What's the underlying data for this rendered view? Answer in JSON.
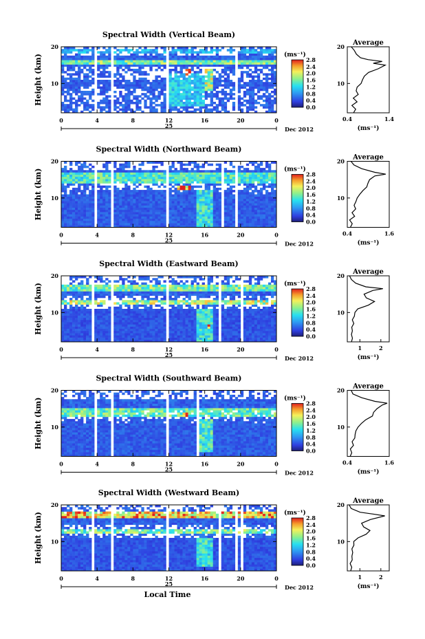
{
  "chart_data": [
    {
      "type": "heatmap",
      "title": "Spectral Width (Vertical Beam)",
      "ylabel": "Height (km)",
      "xticks": [
        "0",
        "4",
        "8",
        "12",
        "16",
        "20",
        "0"
      ],
      "yticks": [
        "10",
        "20"
      ],
      "date_day": "25",
      "date_label": "Dec 2012",
      "xlim": [
        0,
        24
      ],
      "ylim": [
        2,
        20
      ],
      "colorbar": {
        "unit_label": "(ms⁻¹)",
        "ticks": [
          "0.0",
          "0.4",
          "0.8",
          "1.2",
          "1.6",
          "2.0",
          "2.4",
          "2.8"
        ],
        "range": [
          0,
          2.8
        ]
      },
      "data_gaps": [
        [
          3.7,
          4.0
        ],
        [
          4.3,
          4.4
        ],
        [
          5.6,
          5.9
        ],
        [
          11.7,
          12.0
        ],
        [
          18.1,
          18.3
        ],
        [
          19.4,
          19.6
        ],
        [
          20.8,
          21.0
        ]
      ],
      "features": [
        {
          "x": [
            0,
            24
          ],
          "y": [
            8.5,
            11
          ],
          "value": 0.5
        },
        {
          "x": [
            0,
            24
          ],
          "y": [
            15.5,
            16.5
          ],
          "value": 1.6
        },
        {
          "x": [
            12,
            16
          ],
          "y": [
            4,
            13
          ],
          "value": 1.1
        },
        {
          "x": [
            13.8,
            14.6
          ],
          "y": [
            12.5,
            14
          ],
          "value": 2.6
        },
        {
          "x": [
            16,
            17
          ],
          "y": [
            8,
            14
          ],
          "value": 1.8
        },
        {
          "x": [
            0,
            24
          ],
          "y": [
            18,
            19.5
          ],
          "value": 1.0
        }
      ],
      "average": {
        "title": "Average",
        "xlabel": "(ms⁻¹)",
        "xticks": [
          "0.4",
          "1.4"
        ],
        "xlim": [
          0.4,
          1.4
        ],
        "yticks": [
          "10",
          "20"
        ],
        "profile": [
          [
            2,
            0.55
          ],
          [
            3,
            0.6
          ],
          [
            4,
            0.5
          ],
          [
            5,
            0.62
          ],
          [
            6,
            0.55
          ],
          [
            7,
            0.68
          ],
          [
            8,
            0.6
          ],
          [
            9,
            0.64
          ],
          [
            10,
            0.72
          ],
          [
            11,
            0.75
          ],
          [
            12,
            0.8
          ],
          [
            13,
            0.92
          ],
          [
            14,
            1.15
          ],
          [
            15,
            1.3
          ],
          [
            15.5,
            1.0
          ],
          [
            16,
            1.25
          ],
          [
            16.5,
            0.9
          ],
          [
            17,
            0.7
          ],
          [
            18,
            0.6
          ],
          [
            19,
            0.55
          ],
          [
            20,
            0.5
          ]
        ]
      }
    },
    {
      "type": "heatmap",
      "title": "Spectral Width (Northward Beam)",
      "ylabel": "Height (km)",
      "xticks": [
        "0",
        "4",
        "8",
        "12",
        "16",
        "20",
        "0"
      ],
      "yticks": [
        "10",
        "20"
      ],
      "date_day": "25",
      "date_label": "Dec 2012",
      "xlim": [
        0,
        24
      ],
      "ylim": [
        2,
        20
      ],
      "colorbar": {
        "unit_label": "(ms⁻¹)",
        "ticks": [
          "0.0",
          "0.4",
          "0.8",
          "1.2",
          "1.6",
          "2.0",
          "2.4",
          "2.8"
        ],
        "range": [
          0,
          2.8
        ]
      },
      "data_gaps": [
        [
          3.7,
          4.0
        ],
        [
          4.3,
          4.4
        ],
        [
          5.6,
          5.9
        ],
        [
          11.7,
          12.0
        ],
        [
          17.8,
          18.0
        ],
        [
          19.4,
          19.6
        ],
        [
          20.8,
          21.0
        ]
      ],
      "features": [
        {
          "x": [
            0,
            24
          ],
          "y": [
            2,
            12
          ],
          "value": 0.5
        },
        {
          "x": [
            0,
            24
          ],
          "y": [
            14,
            17
          ],
          "value": 1.4
        },
        {
          "x": [
            15,
            17
          ],
          "y": [
            2,
            12
          ],
          "value": 1.3
        },
        {
          "x": [
            13,
            14.5
          ],
          "y": [
            12.5,
            13.5
          ],
          "value": 2.4
        }
      ],
      "average": {
        "title": "Average",
        "xlabel": "(ms⁻¹)",
        "xticks": [
          "0.4",
          "1.6"
        ],
        "xlim": [
          0.4,
          1.6
        ],
        "yticks": [
          "10",
          "20"
        ],
        "profile": [
          [
            2,
            0.5
          ],
          [
            3,
            0.55
          ],
          [
            4,
            0.45
          ],
          [
            5,
            0.6
          ],
          [
            6,
            0.55
          ],
          [
            7,
            0.62
          ],
          [
            8,
            0.6
          ],
          [
            9,
            0.66
          ],
          [
            10,
            0.7
          ],
          [
            11,
            0.75
          ],
          [
            12,
            0.85
          ],
          [
            13,
            0.95
          ],
          [
            14,
            1.0
          ],
          [
            15,
            1.05
          ],
          [
            16,
            1.2
          ],
          [
            16.5,
            1.5
          ],
          [
            17,
            1.2
          ],
          [
            18,
            0.8
          ],
          [
            19,
            0.6
          ],
          [
            20,
            0.5
          ]
        ]
      }
    },
    {
      "type": "heatmap",
      "title": "Spectral Width (Eastward Beam)",
      "ylabel": "Height (km)",
      "xticks": [
        "0",
        "4",
        "8",
        "12",
        "16",
        "20",
        "0"
      ],
      "yticks": [
        "10",
        "20"
      ],
      "date_day": "25",
      "date_label": "Dec 2012",
      "xlim": [
        0,
        24
      ],
      "ylim": [
        2,
        20
      ],
      "colorbar": {
        "unit_label": "(ms⁻¹)",
        "ticks": [
          "0.0",
          "0.4",
          "0.8",
          "1.2",
          "1.6",
          "2.0",
          "2.4",
          "2.8"
        ],
        "range": [
          0,
          2.8
        ]
      },
      "data_gaps": [
        [
          3.4,
          3.7
        ],
        [
          4.3,
          4.4
        ],
        [
          5.6,
          5.9
        ],
        [
          11.7,
          12.0
        ],
        [
          17.5,
          17.7
        ],
        [
          20.1,
          20.3
        ]
      ],
      "features": [
        {
          "x": [
            0,
            24
          ],
          "y": [
            2,
            11
          ],
          "value": 0.45
        },
        {
          "x": [
            0,
            24
          ],
          "y": [
            12,
            13.5
          ],
          "value": 1.8
        },
        {
          "x": [
            0,
            24
          ],
          "y": [
            16,
            17.5
          ],
          "value": 1.6
        },
        {
          "x": [
            15,
            17
          ],
          "y": [
            2,
            11
          ],
          "value": 1.3
        },
        {
          "x": [
            16.3,
            16.7
          ],
          "y": [
            5.5,
            6.5
          ],
          "value": 2.8
        }
      ],
      "average": {
        "title": "Average",
        "xlabel": "(ms⁻¹)",
        "xticks": [
          "1",
          "2"
        ],
        "xlim": [
          0.4,
          2.4
        ],
        "yticks": [
          "10",
          "20"
        ],
        "profile": [
          [
            2,
            0.6
          ],
          [
            3,
            0.65
          ],
          [
            4,
            0.6
          ],
          [
            5,
            0.65
          ],
          [
            6,
            0.62
          ],
          [
            7,
            0.7
          ],
          [
            8,
            0.65
          ],
          [
            9,
            0.72
          ],
          [
            10,
            0.75
          ],
          [
            11,
            0.9
          ],
          [
            12,
            1.4
          ],
          [
            13,
            1.7
          ],
          [
            14,
            1.3
          ],
          [
            15,
            1.2
          ],
          [
            16,
            1.6
          ],
          [
            16.5,
            2.1
          ],
          [
            17,
            1.3
          ],
          [
            18,
            0.8
          ],
          [
            19,
            0.6
          ],
          [
            20,
            0.5
          ]
        ]
      }
    },
    {
      "type": "heatmap",
      "title": "Spectral Width (Southward Beam)",
      "ylabel": "Height (km)",
      "xticks": [
        "0",
        "4",
        "8",
        "12",
        "16",
        "20",
        "0"
      ],
      "yticks": [
        "10",
        "20"
      ],
      "date_day": "25",
      "date_label": "Dec 2012",
      "xlim": [
        0,
        24
      ],
      "ylim": [
        2,
        20
      ],
      "colorbar": {
        "unit_label": "(ms⁻¹)",
        "ticks": [
          "0.0",
          "0.4",
          "0.8",
          "1.2",
          "1.6",
          "2.0",
          "2.4",
          "2.8"
        ],
        "range": [
          0,
          2.8
        ]
      },
      "data_gaps": [
        [
          3.7,
          4.0
        ],
        [
          4.3,
          4.4
        ],
        [
          5.6,
          5.9
        ],
        [
          11.7,
          12.0
        ],
        [
          15.2,
          15.4
        ],
        [
          20.8,
          21.0
        ]
      ],
      "features": [
        {
          "x": [
            0,
            24
          ],
          "y": [
            2,
            12
          ],
          "value": 0.5
        },
        {
          "x": [
            0,
            24
          ],
          "y": [
            13,
            15
          ],
          "value": 1.5
        },
        {
          "x": [
            15.5,
            17
          ],
          "y": [
            3,
            12
          ],
          "value": 1.4
        },
        {
          "x": [
            13.5,
            14.2
          ],
          "y": [
            13,
            14
          ],
          "value": 2.5
        }
      ],
      "average": {
        "title": "Average",
        "xlabel": "(ms⁻¹)",
        "xticks": [
          "0.4",
          "1.6"
        ],
        "xlim": [
          0.4,
          1.6
        ],
        "yticks": [
          "10",
          "20"
        ],
        "profile": [
          [
            2,
            0.5
          ],
          [
            3,
            0.52
          ],
          [
            4,
            0.5
          ],
          [
            5,
            0.56
          ],
          [
            6,
            0.55
          ],
          [
            7,
            0.6
          ],
          [
            8,
            0.62
          ],
          [
            9,
            0.65
          ],
          [
            10,
            0.72
          ],
          [
            11,
            0.82
          ],
          [
            12,
            0.95
          ],
          [
            13,
            1.1
          ],
          [
            14,
            1.15
          ],
          [
            15,
            1.25
          ],
          [
            16,
            1.4
          ],
          [
            16.5,
            1.55
          ],
          [
            17,
            1.2
          ],
          [
            18,
            0.8
          ],
          [
            19,
            0.55
          ],
          [
            20,
            0.5
          ]
        ]
      }
    },
    {
      "type": "heatmap",
      "title": "Spectral Width (Westward Beam)",
      "ylabel": "Height (km)",
      "xlabel": "Local Time",
      "xticks": [
        "0",
        "4",
        "8",
        "12",
        "16",
        "20",
        "0"
      ],
      "yticks": [
        "10",
        "20"
      ],
      "date_day": "25",
      "date_label": "Dec 2012",
      "xlim": [
        0,
        24
      ],
      "ylim": [
        2,
        20
      ],
      "colorbar": {
        "unit_label": "(ms⁻¹)",
        "ticks": [
          "0.0",
          "0.4",
          "0.8",
          "1.2",
          "1.6",
          "2.0",
          "2.4",
          "2.8"
        ],
        "range": [
          0,
          2.8
        ]
      },
      "data_gaps": [
        [
          3.4,
          3.7
        ],
        [
          4.3,
          4.4
        ],
        [
          5.6,
          5.9
        ],
        [
          11.7,
          12.0
        ],
        [
          17.5,
          17.7
        ],
        [
          19.4,
          19.6
        ],
        [
          20.1,
          20.3
        ]
      ],
      "features": [
        {
          "x": [
            0,
            24
          ],
          "y": [
            2,
            11
          ],
          "value": 0.45
        },
        {
          "x": [
            0,
            24
          ],
          "y": [
            12,
            13.5
          ],
          "value": 1.6
        },
        {
          "x": [
            0,
            24
          ],
          "y": [
            16.5,
            18
          ],
          "value": 2.2
        },
        {
          "x": [
            15,
            17
          ],
          "y": [
            3,
            11
          ],
          "value": 1.3
        }
      ],
      "average": {
        "title": "Average",
        "xlabel": "(ms⁻¹)",
        "xticks": [
          "1",
          "2"
        ],
        "xlim": [
          0.4,
          2.4
        ],
        "yticks": [
          "10",
          "20"
        ],
        "profile": [
          [
            2,
            0.55
          ],
          [
            3,
            0.6
          ],
          [
            4,
            0.55
          ],
          [
            5,
            0.62
          ],
          [
            6,
            0.6
          ],
          [
            7,
            0.65
          ],
          [
            8,
            0.62
          ],
          [
            9,
            0.7
          ],
          [
            10,
            0.72
          ],
          [
            11,
            0.9
          ],
          [
            12,
            1.3
          ],
          [
            13,
            1.5
          ],
          [
            14,
            1.2
          ],
          [
            15,
            1.1
          ],
          [
            16,
            1.5
          ],
          [
            17,
            2.2
          ],
          [
            17.5,
            1.6
          ],
          [
            18,
            1.0
          ],
          [
            19,
            0.6
          ],
          [
            20,
            0.5
          ]
        ]
      }
    }
  ]
}
